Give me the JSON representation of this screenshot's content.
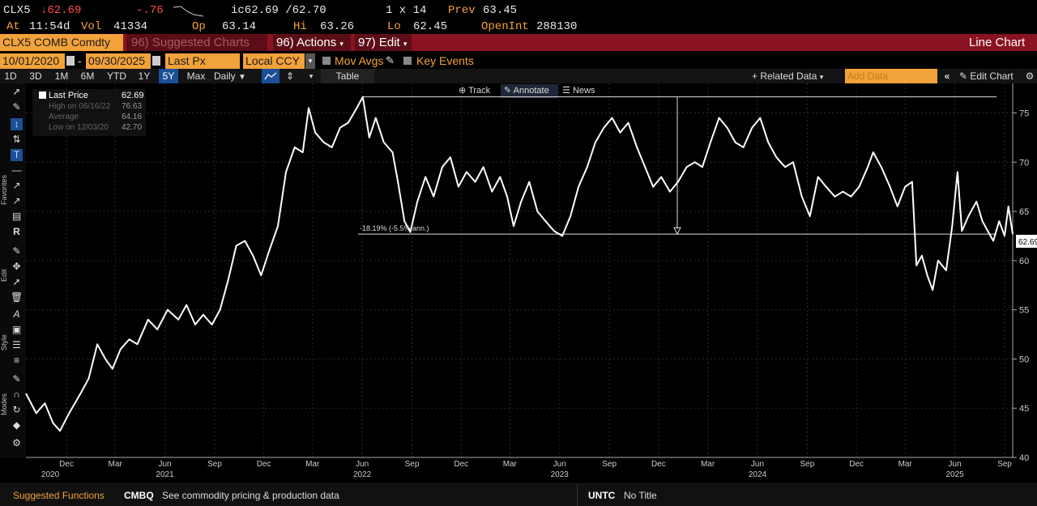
{
  "quote": {
    "ticker": "CLX5",
    "last": "↓62.69",
    "change": "-.76",
    "ic": "ic62.69 /62.70",
    "size": "1 x 14",
    "prev_label": "Prev",
    "prev": "63.45",
    "at_label": "At",
    "time": "11:54d",
    "vol_label": "Vol",
    "vol": "41334",
    "op_label": "Op",
    "op": "63.14",
    "hi_label": "Hi",
    "hi": "63.26",
    "lo_label": "Lo",
    "lo": "62.45",
    "openint_label": "OpenInt",
    "openint": "288130"
  },
  "titlebar": {
    "security": "CLX5 COMB Comdty",
    "suggested": "96) Suggested Charts",
    "actions": "96) Actions",
    "edit": "97) Edit",
    "chart_type": "Line Chart"
  },
  "toolbar": {
    "start_date": "10/01/2020",
    "dash": "-",
    "end_date": "09/30/2025",
    "field": "Last Px",
    "currency": "Local CCY",
    "mov_avgs": "Mov Avgs",
    "key_events": "Key Events",
    "timeframes": [
      "1D",
      "3D",
      "1M",
      "6M",
      "YTD",
      "1Y",
      "5Y",
      "Max"
    ],
    "active_timeframe": "5Y",
    "frequency": "Daily",
    "table": "Table",
    "related": "+ Related Data",
    "add_data": "Add Data",
    "edit_chart": "Edit Chart"
  },
  "chart_modes": {
    "track": "Track",
    "annotate": "Annotate",
    "news": "News"
  },
  "side_labels": {
    "favorites": "Favorites",
    "edit": "Edit",
    "style": "Style",
    "modes": "Modes"
  },
  "legend": {
    "last_price_label": "Last Price",
    "last_price": "62.69",
    "high_label": "High on 06/16/22",
    "high": "76.63",
    "average_label": "Average",
    "average": "64.16",
    "low_label": "Low on 12/03/20",
    "low": "42.70"
  },
  "annotation": {
    "label": "-18.19% (-5.5% ann.)"
  },
  "last_value_tag": "62.69",
  "bottom": {
    "suggested_functions": "Suggested Functions",
    "fn1_code": "CMBQ",
    "fn1_desc": "See commodity pricing & production data",
    "fn2_code": "UNTC",
    "fn2_desc": "No Title"
  },
  "colors": {
    "accent": "#f2a23a",
    "titlebar": "#8a1321",
    "active_blue": "#1b4f98",
    "line": "#ffffff"
  },
  "chart_data": {
    "type": "line",
    "ylim": [
      40,
      78
    ],
    "yticks": [
      40,
      45,
      50,
      55,
      60,
      65,
      70,
      75
    ],
    "xlim": [
      "2020-10-01",
      "2025-09-30"
    ],
    "x_month_ticks": [
      {
        "date": "2020-12-15",
        "label": "Dec"
      },
      {
        "date": "2021-03-15",
        "label": "Mar"
      },
      {
        "date": "2021-06-15",
        "label": "Jun"
      },
      {
        "date": "2021-09-15",
        "label": "Sep"
      },
      {
        "date": "2021-12-15",
        "label": "Dec"
      },
      {
        "date": "2022-03-15",
        "label": "Mar"
      },
      {
        "date": "2022-06-15",
        "label": "Jun"
      },
      {
        "date": "2022-09-15",
        "label": "Sep"
      },
      {
        "date": "2022-12-15",
        "label": "Dec"
      },
      {
        "date": "2023-03-15",
        "label": "Mar"
      },
      {
        "date": "2023-06-15",
        "label": "Jun"
      },
      {
        "date": "2023-09-15",
        "label": "Sep"
      },
      {
        "date": "2023-12-15",
        "label": "Dec"
      },
      {
        "date": "2024-03-15",
        "label": "Mar"
      },
      {
        "date": "2024-06-15",
        "label": "Jun"
      },
      {
        "date": "2024-09-15",
        "label": "Sep"
      },
      {
        "date": "2024-12-15",
        "label": "Dec"
      },
      {
        "date": "2025-03-15",
        "label": "Mar"
      },
      {
        "date": "2025-06-15",
        "label": "Jun"
      },
      {
        "date": "2025-09-15",
        "label": "Sep"
      }
    ],
    "x_year_labels": [
      {
        "date": "2020-11-15",
        "label": "2020"
      },
      {
        "date": "2021-06-15",
        "label": "2021"
      },
      {
        "date": "2022-06-15",
        "label": "2022"
      },
      {
        "date": "2023-06-15",
        "label": "2023"
      },
      {
        "date": "2024-06-15",
        "label": "2024"
      },
      {
        "date": "2025-06-15",
        "label": "2025"
      }
    ],
    "series": [
      {
        "values": [
          [
            "2020-10-01",
            46.5
          ],
          [
            "2020-10-20",
            44.5
          ],
          [
            "2020-11-05",
            45.5
          ],
          [
            "2020-11-20",
            43.5
          ],
          [
            "2020-12-03",
            42.7
          ],
          [
            "2020-12-20",
            44.5
          ],
          [
            "2021-01-10",
            46.5
          ],
          [
            "2021-01-25",
            48.0
          ],
          [
            "2021-02-10",
            51.5
          ],
          [
            "2021-02-25",
            50.0
          ],
          [
            "2021-03-10",
            49.0
          ],
          [
            "2021-03-25",
            51.0
          ],
          [
            "2021-04-10",
            52.0
          ],
          [
            "2021-04-25",
            51.5
          ],
          [
            "2021-05-15",
            54.0
          ],
          [
            "2021-06-01",
            53.0
          ],
          [
            "2021-06-20",
            55.0
          ],
          [
            "2021-07-10",
            54.0
          ],
          [
            "2021-07-25",
            55.5
          ],
          [
            "2021-08-10",
            53.5
          ],
          [
            "2021-08-25",
            54.5
          ],
          [
            "2021-09-10",
            53.5
          ],
          [
            "2021-09-25",
            55.0
          ],
          [
            "2021-10-10",
            58.0
          ],
          [
            "2021-10-25",
            61.5
          ],
          [
            "2021-11-10",
            62.0
          ],
          [
            "2021-11-25",
            60.5
          ],
          [
            "2021-12-10",
            58.5
          ],
          [
            "2021-12-25",
            61.0
          ],
          [
            "2022-01-10",
            63.5
          ],
          [
            "2022-01-25",
            69.0
          ],
          [
            "2022-02-10",
            71.5
          ],
          [
            "2022-02-25",
            71.0
          ],
          [
            "2022-03-08",
            75.5
          ],
          [
            "2022-03-20",
            73.0
          ],
          [
            "2022-04-05",
            72.0
          ],
          [
            "2022-04-20",
            71.5
          ],
          [
            "2022-05-05",
            73.5
          ],
          [
            "2022-05-20",
            74.0
          ],
          [
            "2022-06-05",
            75.5
          ],
          [
            "2022-06-16",
            76.63
          ],
          [
            "2022-06-28",
            72.5
          ],
          [
            "2022-07-10",
            74.5
          ],
          [
            "2022-07-25",
            72.0
          ],
          [
            "2022-08-10",
            71.0
          ],
          [
            "2022-08-20",
            68.0
          ],
          [
            "2022-09-01",
            64.0
          ],
          [
            "2022-09-12",
            62.9
          ],
          [
            "2022-09-25",
            66.0
          ],
          [
            "2022-10-10",
            68.5
          ],
          [
            "2022-10-25",
            66.5
          ],
          [
            "2022-11-10",
            69.5
          ],
          [
            "2022-11-25",
            70.5
          ],
          [
            "2022-12-10",
            67.5
          ],
          [
            "2022-12-25",
            69.0
          ],
          [
            "2023-01-10",
            68.0
          ],
          [
            "2023-01-25",
            69.5
          ],
          [
            "2023-02-10",
            67.0
          ],
          [
            "2023-02-25",
            68.5
          ],
          [
            "2023-03-10",
            66.5
          ],
          [
            "2023-03-22",
            63.5
          ],
          [
            "2023-04-05",
            66.0
          ],
          [
            "2023-04-20",
            68.0
          ],
          [
            "2023-05-05",
            65.0
          ],
          [
            "2023-05-20",
            64.0
          ],
          [
            "2023-06-05",
            63.0
          ],
          [
            "2023-06-20",
            62.5
          ],
          [
            "2023-07-05",
            64.5
          ],
          [
            "2023-07-20",
            67.5
          ],
          [
            "2023-08-05",
            69.5
          ],
          [
            "2023-08-20",
            72.0
          ],
          [
            "2023-09-05",
            73.5
          ],
          [
            "2023-09-20",
            74.5
          ],
          [
            "2023-10-05",
            73.0
          ],
          [
            "2023-10-20",
            74.0
          ],
          [
            "2023-11-05",
            71.5
          ],
          [
            "2023-11-20",
            69.5
          ],
          [
            "2023-12-05",
            67.5
          ],
          [
            "2023-12-20",
            68.5
          ],
          [
            "2024-01-05",
            67.0
          ],
          [
            "2024-01-20",
            68.0
          ],
          [
            "2024-02-05",
            69.5
          ],
          [
            "2024-02-20",
            70.0
          ],
          [
            "2024-03-05",
            69.5
          ],
          [
            "2024-03-20",
            72.0
          ],
          [
            "2024-04-05",
            74.5
          ],
          [
            "2024-04-20",
            73.5
          ],
          [
            "2024-05-05",
            72.0
          ],
          [
            "2024-05-20",
            71.5
          ],
          [
            "2024-06-05",
            73.5
          ],
          [
            "2024-06-20",
            74.5
          ],
          [
            "2024-07-05",
            72.0
          ],
          [
            "2024-07-20",
            70.5
          ],
          [
            "2024-08-05",
            69.5
          ],
          [
            "2024-08-20",
            70.0
          ],
          [
            "2024-09-05",
            66.5
          ],
          [
            "2024-09-20",
            64.5
          ],
          [
            "2024-10-05",
            68.5
          ],
          [
            "2024-10-20",
            67.5
          ],
          [
            "2024-11-05",
            66.5
          ],
          [
            "2024-11-20",
            67.0
          ],
          [
            "2024-12-05",
            66.5
          ],
          [
            "2024-12-20",
            67.5
          ],
          [
            "2025-01-05",
            69.5
          ],
          [
            "2025-01-15",
            71.0
          ],
          [
            "2025-01-30",
            69.5
          ],
          [
            "2025-02-15",
            67.5
          ],
          [
            "2025-03-01",
            65.5
          ],
          [
            "2025-03-15",
            67.5
          ],
          [
            "2025-03-28",
            68.0
          ],
          [
            "2025-04-05",
            59.5
          ],
          [
            "2025-04-15",
            60.5
          ],
          [
            "2025-04-25",
            58.5
          ],
          [
            "2025-05-05",
            57.0
          ],
          [
            "2025-05-15",
            60.0
          ],
          [
            "2025-05-30",
            59.0
          ],
          [
            "2025-06-10",
            63.5
          ],
          [
            "2025-06-20",
            69.0
          ],
          [
            "2025-06-28",
            63.0
          ],
          [
            "2025-07-10",
            64.5
          ],
          [
            "2025-07-25",
            66.0
          ],
          [
            "2025-08-05",
            64.0
          ],
          [
            "2025-08-15",
            63.0
          ],
          [
            "2025-08-25",
            62.0
          ],
          [
            "2025-09-05",
            64.0
          ],
          [
            "2025-09-15",
            62.5
          ],
          [
            "2025-09-22",
            65.5
          ],
          [
            "2025-09-30",
            62.69
          ]
        ]
      }
    ],
    "reference_lines": [
      76.63,
      62.69
    ],
    "grid": true
  }
}
